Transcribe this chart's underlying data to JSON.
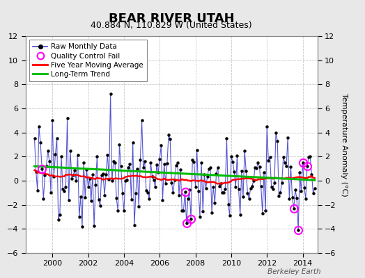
{
  "title": "BEAR RIVER UTAH",
  "subtitle": "40.884 N, 110.829 W (United States)",
  "ylabel": "Temperature Anomaly (°C)",
  "watermark": "Berkeley Earth",
  "background_color": "#e8e8e8",
  "plot_bg_color": "#ffffff",
  "ylim": [
    -6,
    12
  ],
  "yticks": [
    -6,
    -4,
    -2,
    0,
    2,
    4,
    6,
    8,
    10,
    12
  ],
  "xlim_start": 1998.5,
  "xlim_end": 2014.83,
  "xticks": [
    2000,
    2002,
    2004,
    2006,
    2008,
    2010,
    2012,
    2014
  ],
  "raw_color": "#4444cc",
  "raw_marker_color": "#000000",
  "qc_color": "#ff00ff",
  "moving_avg_color": "#ff0000",
  "trend_color": "#00bb00",
  "grid_color": "#c8c8c8",
  "title_fontsize": 13,
  "subtitle_fontsize": 9,
  "label_fontsize": 8,
  "tick_fontsize": 8
}
